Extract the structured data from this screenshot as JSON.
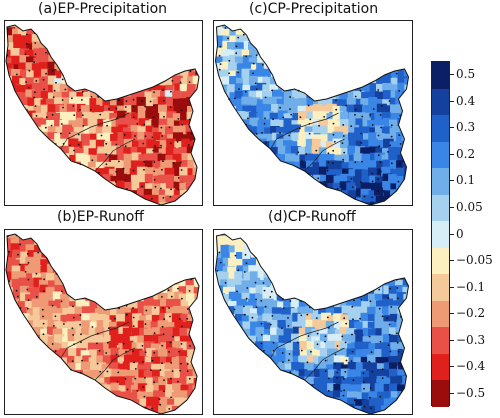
{
  "panels": [
    {
      "id": "ep-precip",
      "title": "(a)EP-Precipitation",
      "scheme": "dry",
      "intensity": 0.75
    },
    {
      "id": "cp-precip",
      "title": "(c)CP-Precipitation",
      "scheme": "wet",
      "intensity": 0.8
    },
    {
      "id": "ep-runoff",
      "title": "(b)EP-Runoff",
      "scheme": "dry",
      "intensity": 0.55
    },
    {
      "id": "cp-runoff",
      "title": "(d)CP-Runoff",
      "scheme": "wet",
      "intensity": 0.75
    }
  ],
  "colorbar": {
    "labels": [
      "0.5",
      "0.4",
      "0.3",
      "0.2",
      "0.1",
      "0.05",
      "0",
      "−0.05",
      "−0.1",
      "−0.2",
      "−0.3",
      "−0.4",
      "−0.5"
    ],
    "colors": [
      "#0b1f66",
      "#14409e",
      "#2061c9",
      "#3a86e6",
      "#6faee9",
      "#a6d1ee",
      "#d8eef6",
      "#fdf0c0",
      "#f6c99a",
      "#ee9a75",
      "#e85048",
      "#e0201c",
      "#9b0c0c"
    ]
  }
}
